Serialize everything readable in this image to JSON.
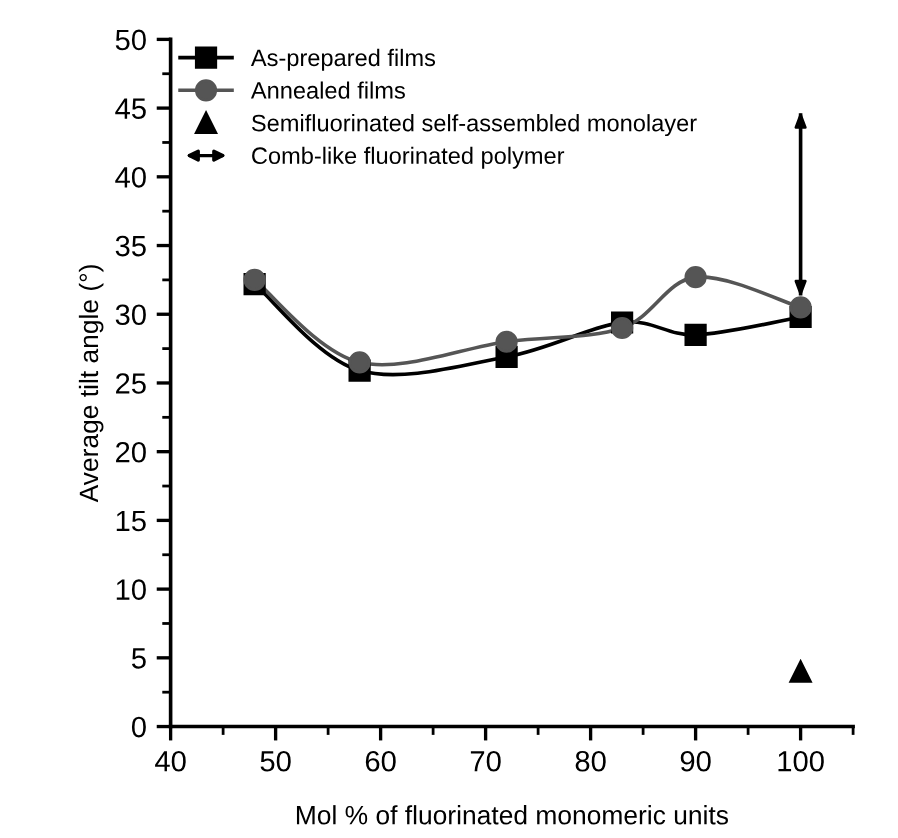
{
  "chart_data": {
    "type": "line",
    "xlabel": "Mol % of fluorinated monomeric units",
    "ylabel": "Average tilt angle (°)",
    "xlim": [
      40,
      105
    ],
    "xticks": [
      40,
      50,
      60,
      70,
      80,
      90,
      100
    ],
    "ylim": [
      0,
      50
    ],
    "yticks": [
      0,
      5,
      10,
      15,
      20,
      25,
      30,
      35,
      40,
      45,
      50
    ],
    "grid": false,
    "legend": "top left",
    "series": [
      {
        "name": "As-prepared films",
        "marker": "square",
        "color": "#000000",
        "x": [
          48,
          58,
          72,
          83,
          90,
          100
        ],
        "values": [
          32.2,
          25.9,
          26.9,
          29.4,
          28.5,
          29.8
        ]
      },
      {
        "name": "Annealed films",
        "marker": "circle",
        "color": "#555555",
        "x": [
          48,
          58,
          72,
          83,
          90,
          100
        ],
        "values": [
          32.5,
          26.5,
          28.0,
          29.0,
          32.7,
          30.5
        ]
      },
      {
        "name": "Semifluorinated self-assembled monolayer",
        "type": "scatter",
        "marker": "triangle",
        "color": "#000000",
        "x": [
          100
        ],
        "values": [
          4
        ]
      },
      {
        "name": "Comb-like fluorinated polymer",
        "type": "line",
        "marker": "none",
        "color": "#000000",
        "x": [
          100,
          100
        ],
        "values": [
          31.5,
          44.5
        ]
      }
    ]
  }
}
